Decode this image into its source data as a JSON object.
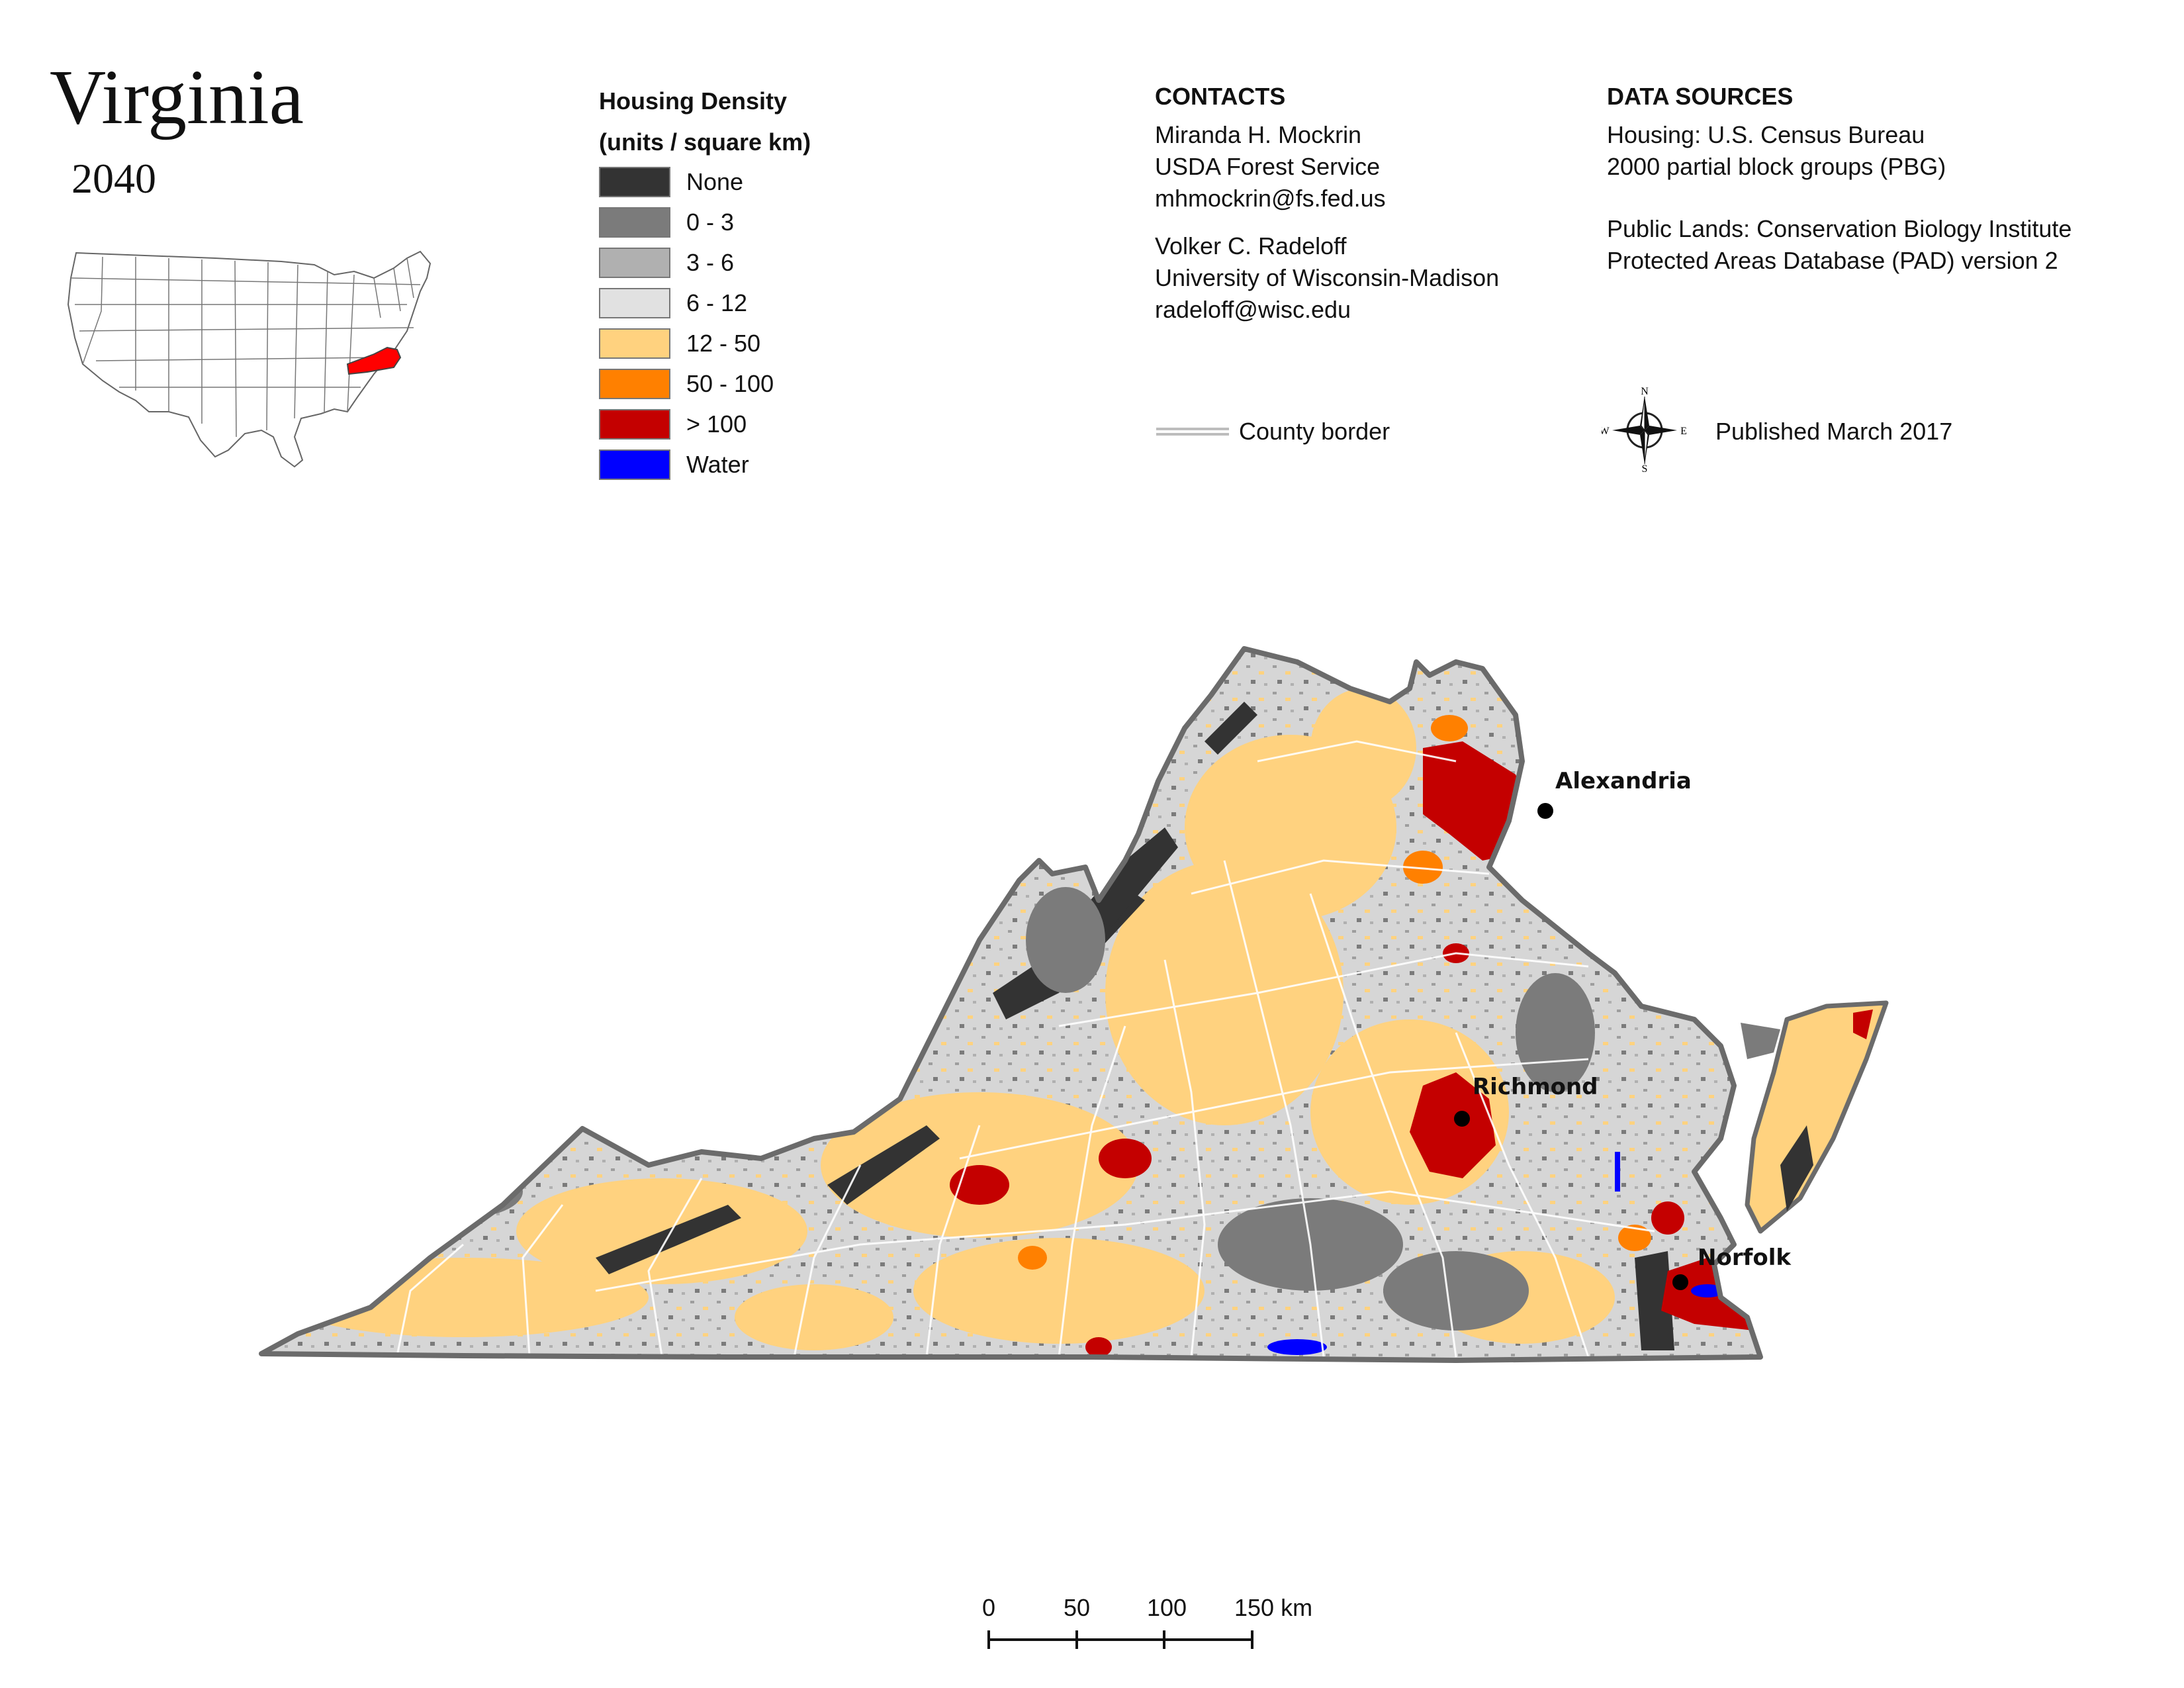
{
  "title": "Virginia",
  "year": "2040",
  "legend": {
    "title_line1": "Housing Density",
    "title_line2": "(units / square km)",
    "items": [
      {
        "label": "None",
        "color": "#333333"
      },
      {
        "label": "0 - 3",
        "color": "#7b7b7b"
      },
      {
        "label": "3 - 6",
        "color": "#b0b0b0"
      },
      {
        "label": "6 - 12",
        "color": "#e1e1e1"
      },
      {
        "label": "12 - 50",
        "color": "#ffd27f"
      },
      {
        "label": "50 - 100",
        "color": "#ff8000"
      },
      {
        "label": "> 100",
        "color": "#c40000"
      },
      {
        "label": "Water",
        "color": "#0000ff"
      }
    ]
  },
  "contacts": {
    "header": "CONTACTS",
    "person1": {
      "name": "Miranda H. Mockrin",
      "org": "USDA Forest Service",
      "email": "mhmockrin@fs.fed.us"
    },
    "person2": {
      "name": "Volker C. Radeloff",
      "org": "University of Wisconsin-Madison",
      "email": "radeloff@wisc.edu"
    }
  },
  "sources": {
    "header": "DATA SOURCES",
    "line1": "Housing: U.S. Census Bureau",
    "line2": "2000 partial block groups (PBG)",
    "line3": "Public Lands: Conservation Biology Institute",
    "line4": "Protected Areas Database (PAD) version 2"
  },
  "county_border_label": "County border",
  "published": "Published March 2017",
  "compass": {
    "n": "N",
    "s": "S",
    "e": "E",
    "w": "W"
  },
  "cities": [
    {
      "name": "Alexandria"
    },
    {
      "name": "Richmond"
    },
    {
      "name": "Norfolk"
    }
  ],
  "scale": {
    "labels": [
      "0",
      "50",
      "100",
      "150 km"
    ]
  },
  "colors": {
    "virginia_highlight": "#ff0000",
    "state_border": "#6b6b6b"
  }
}
